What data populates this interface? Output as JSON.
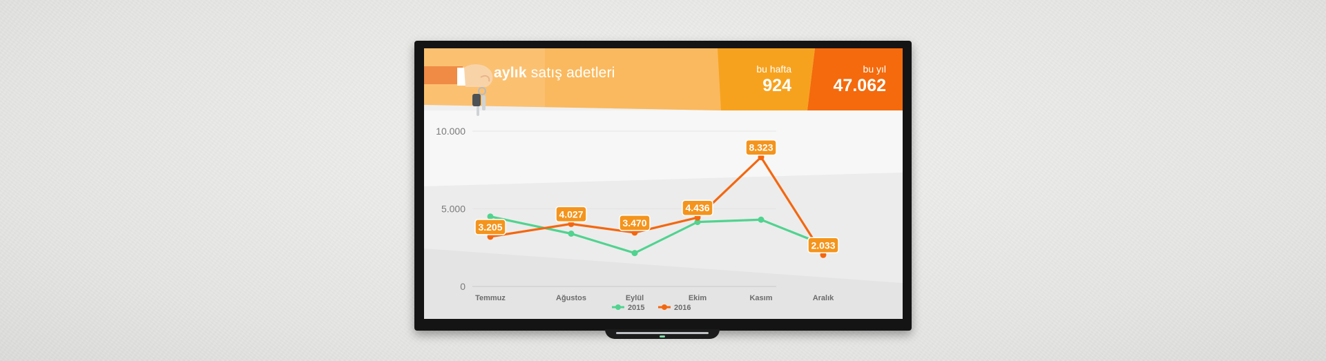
{
  "header": {
    "title_bold": "aylık",
    "title_rest": "satış adetleri",
    "week_label": "bu hafta",
    "week_value": "924",
    "year_label": "bu yıl",
    "year_value": "47.062"
  },
  "colors": {
    "header_light": "#fbc171",
    "header_mid": "#f7a21e",
    "header_dark": "#f46a0c",
    "series_2015": "#50d38f",
    "series_2016": "#f4670f",
    "label_bg": "#f4941c"
  },
  "chart_data": {
    "type": "line",
    "categories": [
      "Temmuz",
      "Ağustos",
      "Eylül",
      "Ekim",
      "Kasım",
      "Aralık"
    ],
    "y_ticks": [
      "0",
      "5.000",
      "10.000"
    ],
    "ylim": [
      0,
      10000
    ],
    "grid": true,
    "legend_position": "bottom-center",
    "series": [
      {
        "name": "2015",
        "values": [
          4500,
          3400,
          2150,
          4150,
          4300,
          2700
        ]
      },
      {
        "name": "2016",
        "values": [
          3205,
          4027,
          3470,
          4436,
          8323,
          2033
        ],
        "labels": [
          "3.205",
          "4.027",
          "3.470",
          "4.436",
          "8.323",
          "2.033"
        ]
      }
    ]
  }
}
